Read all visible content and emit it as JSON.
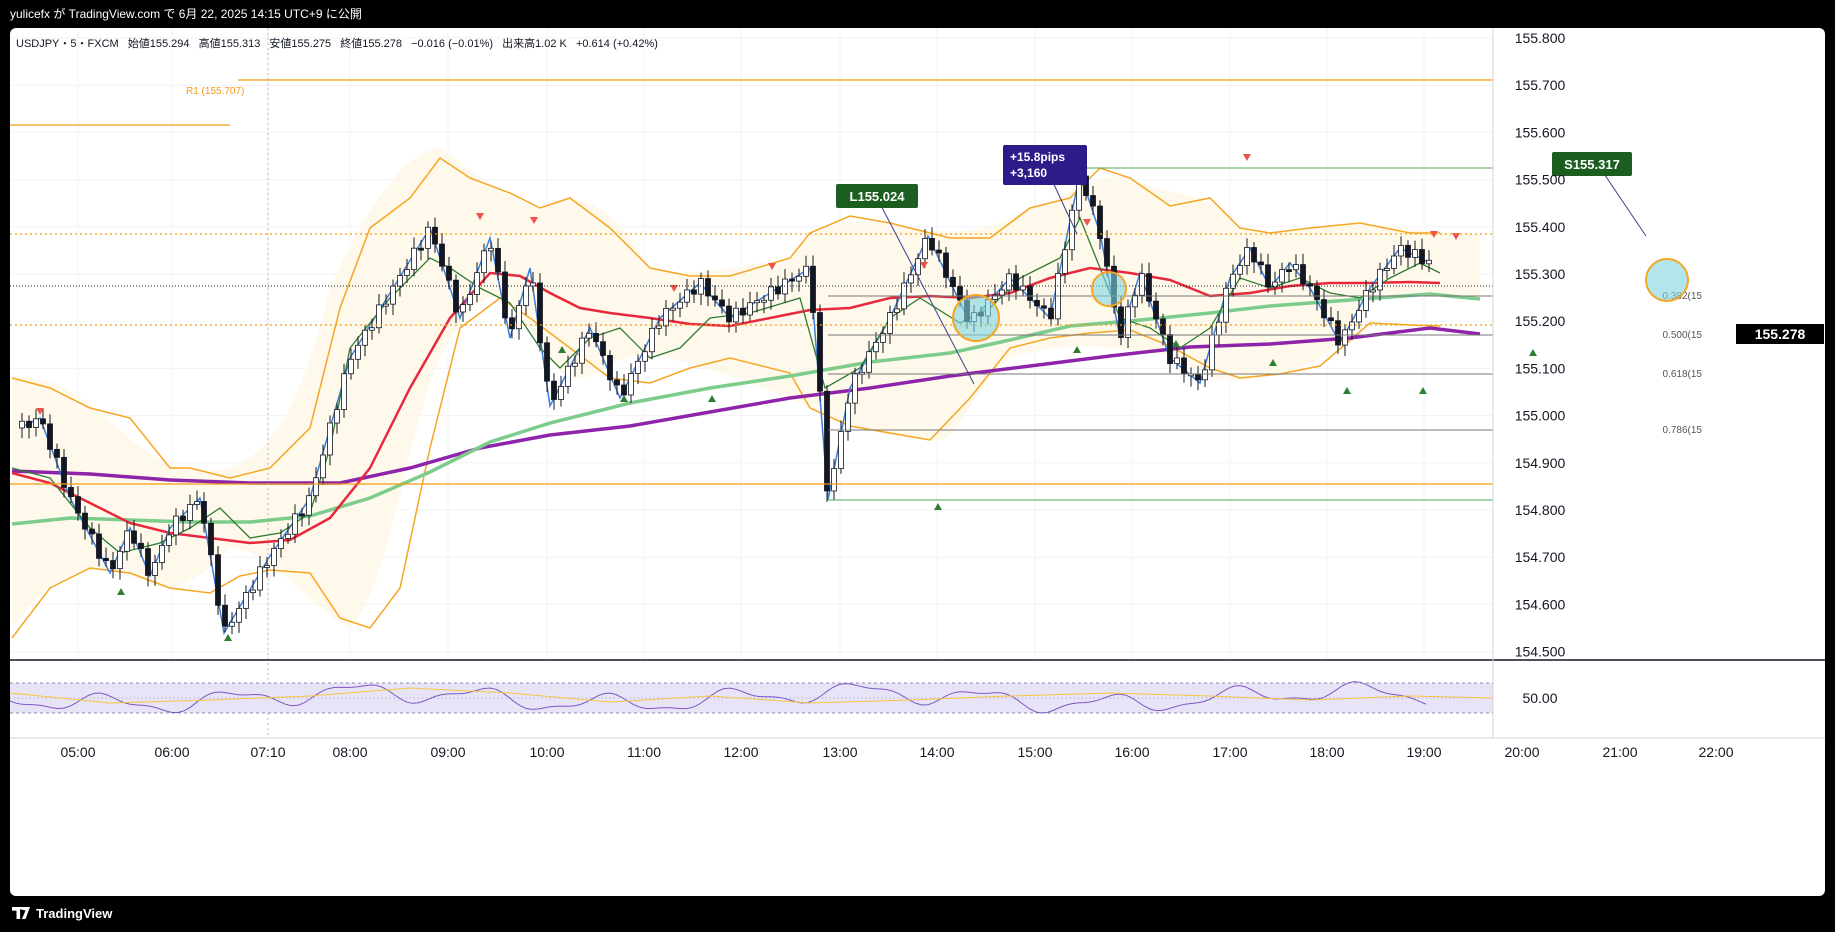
{
  "header": {
    "publish_text": "yulicefx が TradingView.com で 6月 22, 2025 14:15 UTC+9 に公開"
  },
  "legend": {
    "symbol": "USDJPY・5・FXCM",
    "open": "始値155.294",
    "high": "高値155.313",
    "low": "安値155.275",
    "close": "終値155.278",
    "change": "−0.016 (−0.01%)",
    "volume": "出来高1.02 K",
    "volume_change": "+0.614 (+0.42%)"
  },
  "pivot_label": "R1 (155.707)",
  "price_axis": {
    "ticks": [
      "155.800",
      "155.700",
      "155.600",
      "155.500",
      "155.400",
      "155.300",
      "155.200",
      "155.100",
      "155.000",
      "154.900",
      "154.800",
      "154.700",
      "154.600",
      "154.500"
    ],
    "current_price": "155.278",
    "rsi_tick": "50.00"
  },
  "time_axis": {
    "ticks": [
      "05:00",
      "06:00",
      "07:10",
      "08:00",
      "09:00",
      "10:00",
      "11:00",
      "12:00",
      "13:00",
      "14:00",
      "15:00",
      "16:00",
      "17:00",
      "18:00",
      "19:00",
      "20:00",
      "21:00",
      "22:00"
    ]
  },
  "annotations": {
    "long": "L155.024",
    "result_line1": "+15.8pips",
    "result_line2": "+3,160",
    "short": "S155.317"
  },
  "fib_levels": [
    "0.382(15",
    "0.500(15",
    "0.618(15",
    "0.786(15"
  ],
  "footer": {
    "brand": "TradingView"
  },
  "colors": {
    "accent_orange": "#f39c12",
    "ma_red": "#e8283b",
    "ma_green": "#7ccc8c",
    "ma_purple": "#8e24aa",
    "zigzag_blue": "#3d7ddb",
    "long_label_bg": "#1b5e20",
    "result_label_bg": "#2b1c8a"
  }
}
